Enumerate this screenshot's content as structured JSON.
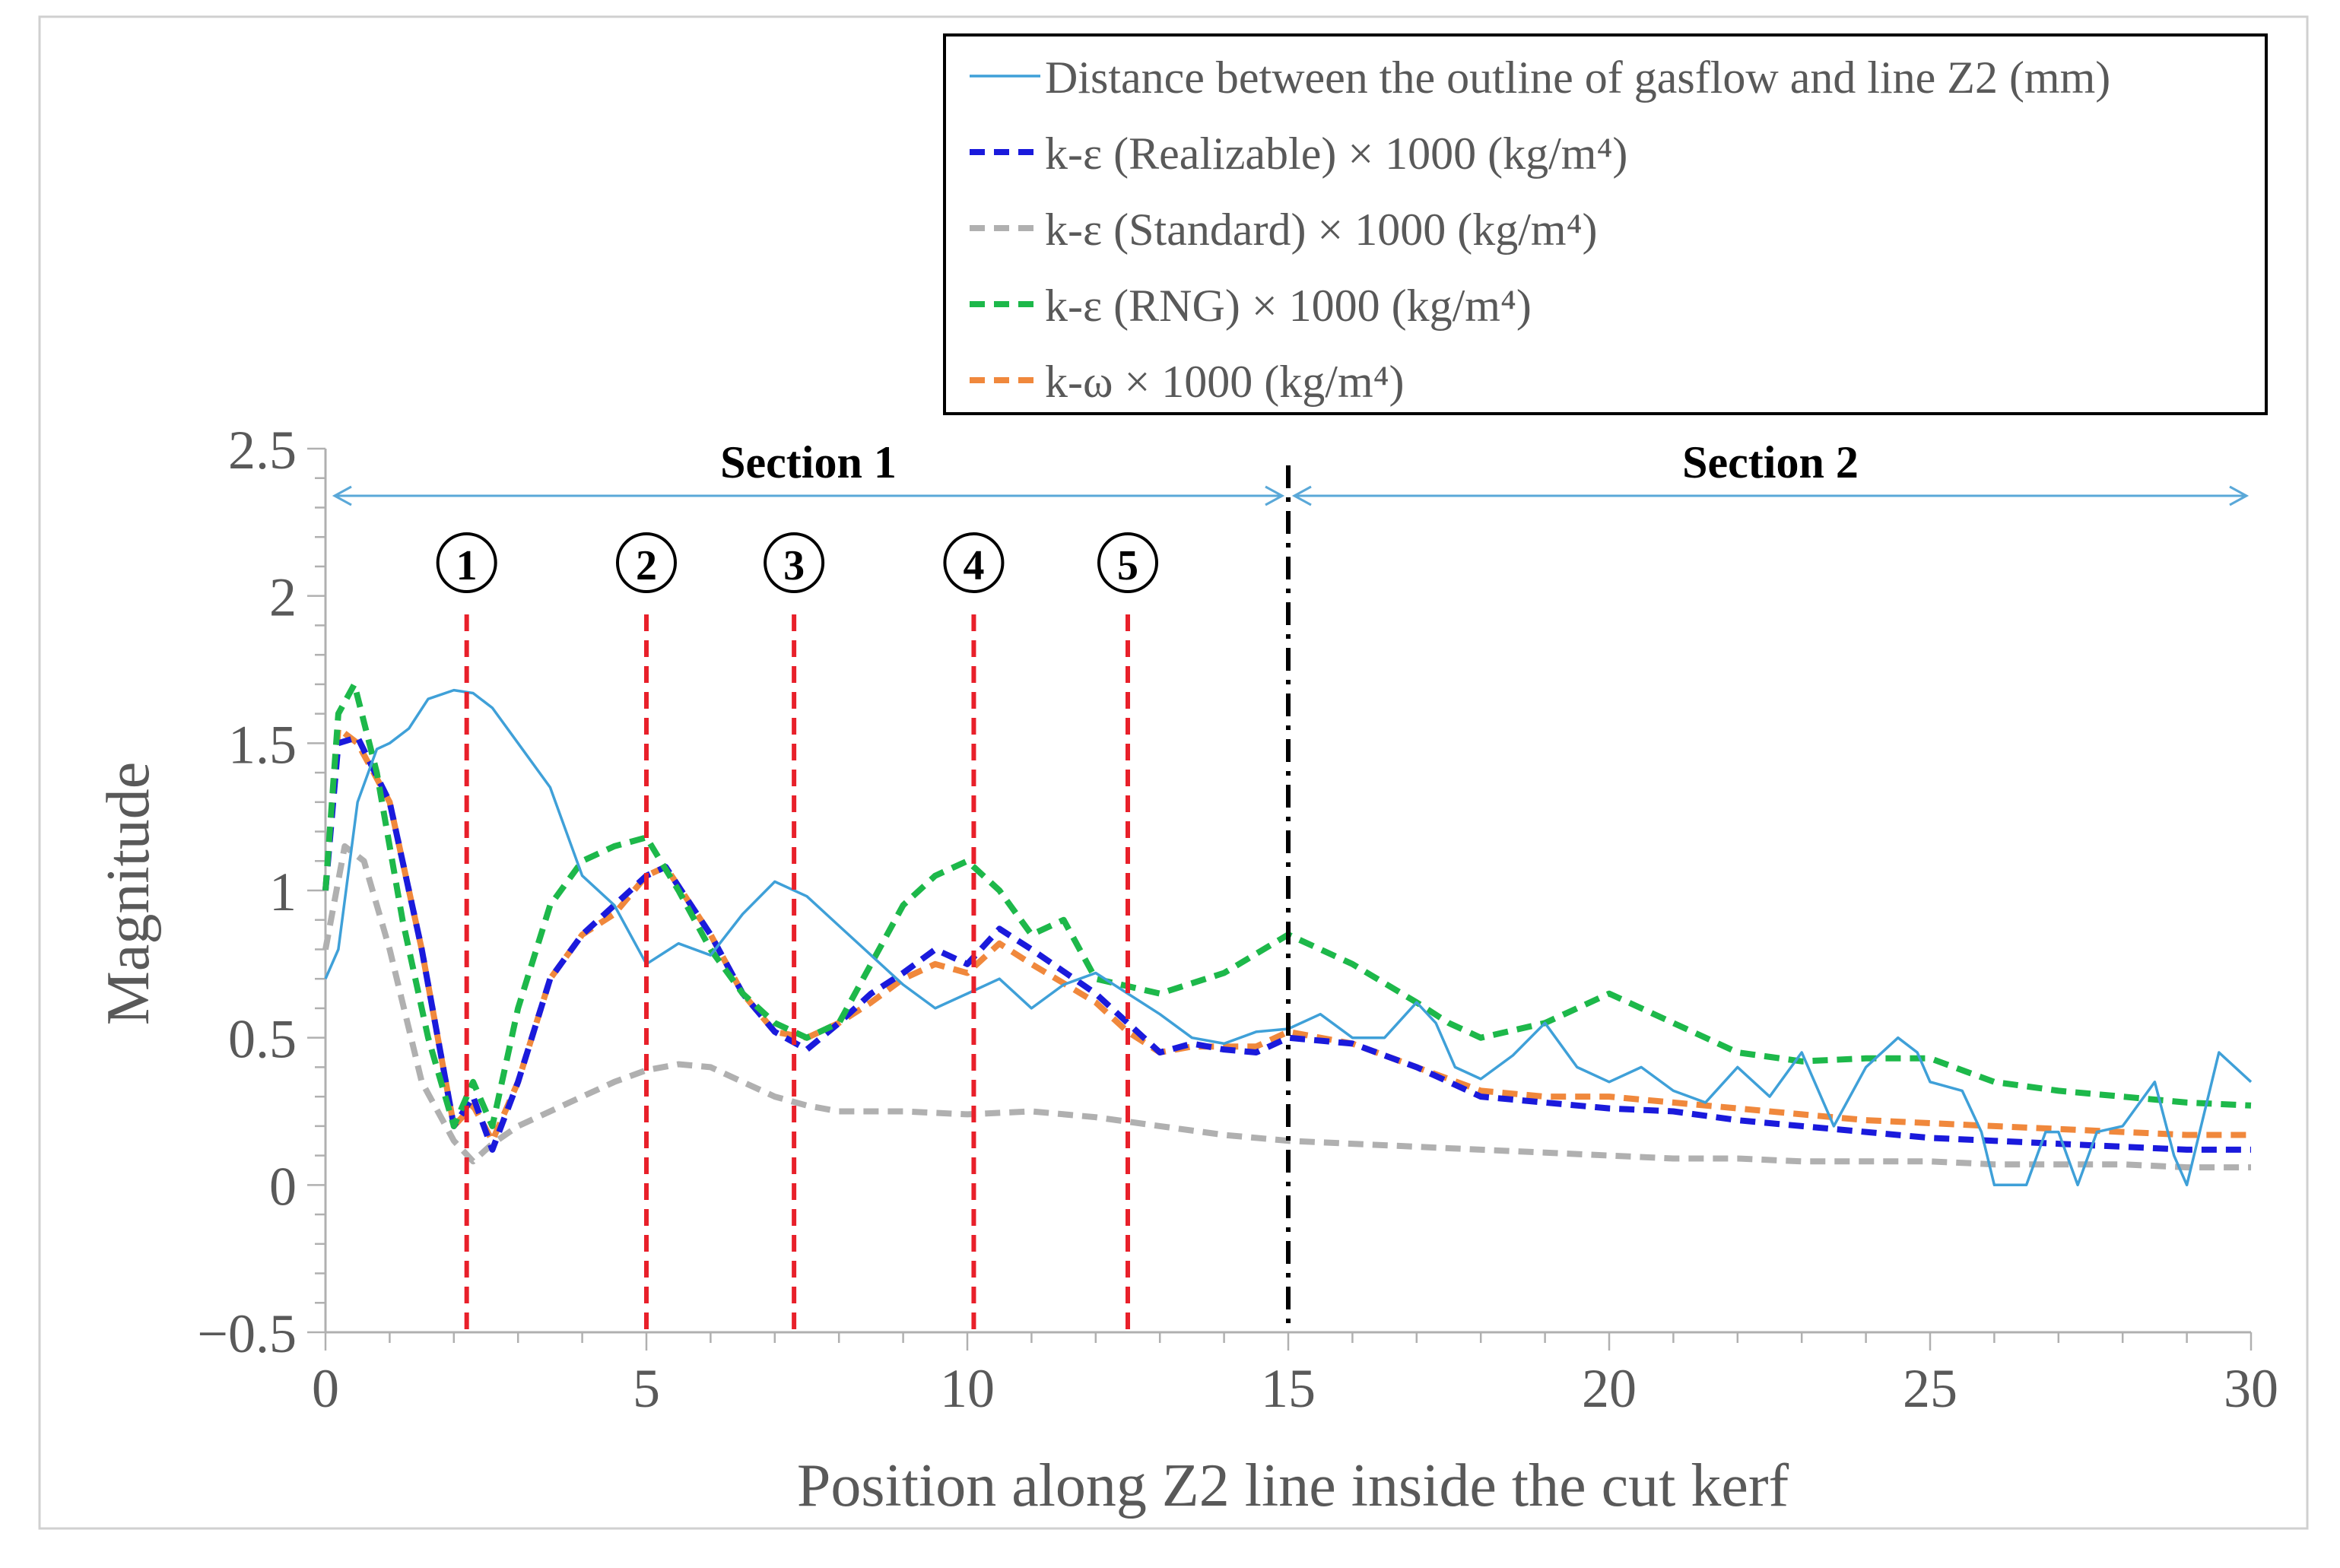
{
  "chart_data": {
    "type": "line",
    "xlabel": "Position along Z2 line inside the cut kerf",
    "ylabel": "Magnitude",
    "xlim": [
      0,
      30
    ],
    "ylim": [
      -0.5,
      2.5
    ],
    "x_ticks": [
      0,
      5,
      10,
      15,
      20,
      25,
      30
    ],
    "x_tick_labels": [
      "0",
      "5",
      "10",
      "15",
      "20",
      "25",
      "30"
    ],
    "y_ticks": [
      -0.5,
      0,
      0.5,
      1,
      1.5,
      2,
      2.5
    ],
    "y_tick_labels": [
      "−0.5",
      "0",
      "0.5",
      "1",
      "1.5",
      "2",
      "2.5"
    ],
    "grid": false,
    "legend_position": "top-right",
    "series": [
      {
        "name": "Distance between the outline of gasflow and line Z2 (mm)",
        "style": "solid",
        "color": "#3fa0d8",
        "x": [
          0,
          0.2,
          0.5,
          0.8,
          1,
          1.3,
          1.6,
          2,
          2.3,
          2.6,
          3,
          3.5,
          4,
          4.5,
          5,
          5.5,
          6,
          6.5,
          7,
          7.5,
          8,
          8.5,
          9,
          9.5,
          10,
          10.5,
          11,
          11.5,
          12,
          12.5,
          13,
          13.5,
          14,
          14.5,
          15,
          15.5,
          16,
          16.5,
          17,
          17.3,
          17.6,
          18,
          18.5,
          19,
          19.5,
          20,
          20.5,
          21,
          21.5,
          22,
          22.5,
          23,
          23.5,
          24,
          24.5,
          24.8,
          25,
          25.5,
          25.8,
          26,
          26.5,
          26.8,
          27,
          27.3,
          27.6,
          28,
          28.5,
          28.8,
          29,
          29.5,
          30
        ],
        "y": [
          0.7,
          0.8,
          1.3,
          1.48,
          1.5,
          1.55,
          1.65,
          1.68,
          1.67,
          1.62,
          1.5,
          1.35,
          1.05,
          0.95,
          0.75,
          0.82,
          0.78,
          0.92,
          1.03,
          0.98,
          0.88,
          0.78,
          0.68,
          0.6,
          0.65,
          0.7,
          0.6,
          0.68,
          0.72,
          0.65,
          0.58,
          0.5,
          0.48,
          0.52,
          0.53,
          0.58,
          0.5,
          0.5,
          0.62,
          0.55,
          0.4,
          0.36,
          0.44,
          0.55,
          0.4,
          0.35,
          0.4,
          0.32,
          0.28,
          0.4,
          0.3,
          0.45,
          0.2,
          0.4,
          0.5,
          0.45,
          0.35,
          0.32,
          0.18,
          0.0,
          0.0,
          0.18,
          0.18,
          0.0,
          0.18,
          0.2,
          0.35,
          0.1,
          0.0,
          0.45,
          0.35
        ]
      },
      {
        "name": "k-ε (Realizable) × 1000 (kg/m⁴)",
        "style": "dashed",
        "color": "#1a1adc",
        "x": [
          0,
          0.2,
          0.5,
          1,
          1.5,
          2,
          2.3,
          2.6,
          3,
          3.5,
          4,
          4.5,
          5,
          5.3,
          6,
          6.5,
          7,
          7.5,
          8,
          8.5,
          9,
          9.5,
          10,
          10.5,
          11,
          12,
          12.5,
          13,
          13.5,
          14,
          14.5,
          15,
          16,
          17,
          18,
          19,
          20,
          21,
          22,
          23,
          24,
          25,
          26,
          27,
          28,
          29,
          30
        ],
        "y": [
          1.0,
          1.5,
          1.52,
          1.3,
          0.8,
          0.2,
          0.3,
          0.12,
          0.35,
          0.7,
          0.85,
          0.95,
          1.05,
          1.08,
          0.85,
          0.65,
          0.52,
          0.46,
          0.55,
          0.65,
          0.72,
          0.8,
          0.75,
          0.87,
          0.8,
          0.65,
          0.55,
          0.45,
          0.48,
          0.46,
          0.45,
          0.5,
          0.48,
          0.4,
          0.3,
          0.28,
          0.26,
          0.25,
          0.22,
          0.2,
          0.18,
          0.16,
          0.15,
          0.14,
          0.13,
          0.12,
          0.12
        ]
      },
      {
        "name": "k-ε (Standard) × 1000 (kg/m⁴)",
        "style": "dashed",
        "color": "#b0b0b0",
        "x": [
          0,
          0.3,
          0.6,
          1,
          1.5,
          2,
          2.3,
          2.6,
          3,
          3.5,
          4,
          4.5,
          5,
          5.5,
          6,
          6.5,
          7,
          7.5,
          8,
          9,
          10,
          11,
          12,
          13,
          14,
          15,
          16,
          17,
          18,
          19,
          20,
          21,
          22,
          23,
          24,
          25,
          26,
          27,
          28,
          29,
          30
        ],
        "y": [
          0.8,
          1.15,
          1.1,
          0.8,
          0.35,
          0.15,
          0.08,
          0.14,
          0.2,
          0.25,
          0.3,
          0.35,
          0.39,
          0.41,
          0.4,
          0.35,
          0.3,
          0.27,
          0.25,
          0.25,
          0.24,
          0.25,
          0.23,
          0.2,
          0.17,
          0.15,
          0.14,
          0.13,
          0.12,
          0.11,
          0.1,
          0.09,
          0.09,
          0.08,
          0.08,
          0.08,
          0.07,
          0.07,
          0.07,
          0.06,
          0.06
        ]
      },
      {
        "name": "k-ε (RNG) × 1000 (kg/m⁴)",
        "style": "dashed",
        "color": "#1db84a",
        "x": [
          0,
          0.2,
          0.45,
          0.8,
          1.2,
          1.6,
          2,
          2.3,
          2.6,
          3,
          3.5,
          4,
          4.5,
          5,
          5.5,
          6,
          6.5,
          7,
          7.5,
          8,
          8.5,
          9,
          9.5,
          10,
          10.5,
          11,
          11.5,
          12,
          13,
          14,
          15,
          16,
          17,
          17.5,
          18,
          19,
          20,
          21,
          22,
          23,
          24,
          25,
          26,
          27,
          28,
          29,
          30
        ],
        "y": [
          1.0,
          1.6,
          1.7,
          1.4,
          0.9,
          0.5,
          0.2,
          0.35,
          0.2,
          0.6,
          0.95,
          1.1,
          1.15,
          1.18,
          1.0,
          0.8,
          0.65,
          0.55,
          0.5,
          0.55,
          0.75,
          0.95,
          1.05,
          1.1,
          1.0,
          0.85,
          0.9,
          0.7,
          0.65,
          0.72,
          0.85,
          0.75,
          0.62,
          0.55,
          0.5,
          0.55,
          0.65,
          0.55,
          0.45,
          0.42,
          0.43,
          0.43,
          0.35,
          0.32,
          0.3,
          0.28,
          0.27
        ]
      },
      {
        "name": "k-ω × 1000 (kg/m⁴)",
        "style": "dashed",
        "color": "#f0883c",
        "x": [
          0,
          0.2,
          0.5,
          1,
          1.5,
          2,
          2.3,
          2.6,
          3,
          3.5,
          4,
          4.5,
          5,
          5.3,
          6,
          6.5,
          7,
          7.5,
          8,
          8.5,
          9,
          9.5,
          10,
          10.5,
          11,
          12,
          12.5,
          13,
          13.5,
          14,
          14.5,
          15,
          16,
          17,
          18,
          19,
          20,
          21,
          22,
          23,
          24,
          25,
          26,
          27,
          28,
          29,
          30
        ],
        "y": [
          1.0,
          1.55,
          1.5,
          1.3,
          0.8,
          0.2,
          0.27,
          0.15,
          0.35,
          0.7,
          0.85,
          0.92,
          1.05,
          1.08,
          0.85,
          0.65,
          0.52,
          0.5,
          0.55,
          0.62,
          0.7,
          0.75,
          0.72,
          0.82,
          0.75,
          0.62,
          0.52,
          0.45,
          0.47,
          0.47,
          0.47,
          0.52,
          0.48,
          0.4,
          0.32,
          0.3,
          0.3,
          0.28,
          0.26,
          0.24,
          0.22,
          0.21,
          0.2,
          0.19,
          0.18,
          0.17,
          0.17
        ]
      }
    ],
    "markers": [
      {
        "label": "1",
        "x": 2.2
      },
      {
        "label": "2",
        "x": 5.0
      },
      {
        "label": "3",
        "x": 7.3
      },
      {
        "label": "4",
        "x": 10.1
      },
      {
        "label": "5",
        "x": 12.5
      }
    ],
    "section_divider_x": 15,
    "sections": [
      {
        "label": "Section 1",
        "x_start": 0,
        "x_end": 15
      },
      {
        "label": "Section 2",
        "x_start": 15,
        "x_end": 30
      }
    ],
    "colors": {
      "marker_line": "#e8202a",
      "divider": "#000000",
      "section_arrow": "#5aa8d8",
      "axis": "#b0b0b0",
      "text": "#595959"
    }
  }
}
